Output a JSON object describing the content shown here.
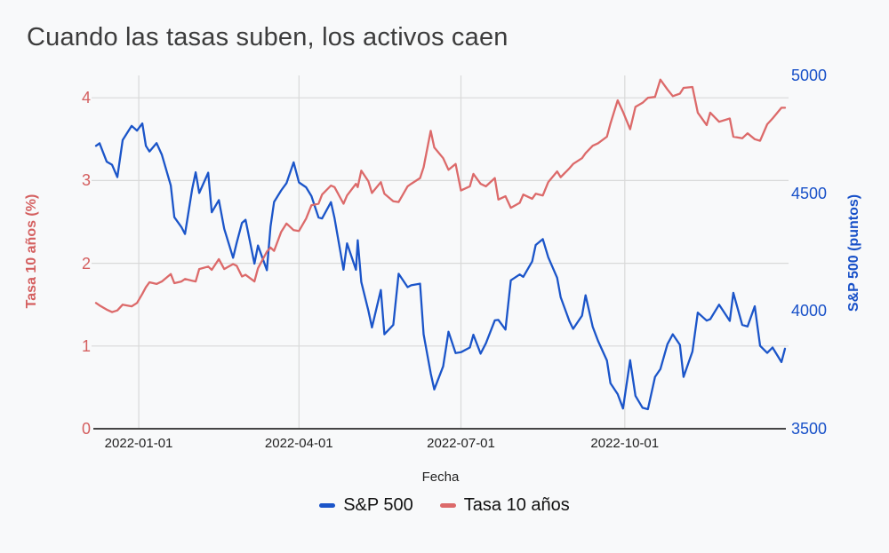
{
  "title": "Cuando las tasas suben, los activos caen",
  "colors": {
    "background": "#f8f9fa",
    "title_text": "#3c3c3c",
    "tick_text": "#1f1f1f",
    "blue": "#1b55c9",
    "blue_text": "#1750c8",
    "red": "#dc6a6a",
    "red_text": "#d45f5f",
    "grid": "#d9d9d9",
    "axis_line": "#454545"
  },
  "chart_data": {
    "type": "line",
    "title": "Cuando las tasas suben, los activos caen",
    "xlabel": "Fecha",
    "grid": true,
    "legend_position": "bottom",
    "x_tick_labels": [
      "2022-01-01",
      "2022-04-01",
      "2022-07-01",
      "2022-10-01"
    ],
    "x_range": [
      "2021-12-08",
      "2022-12-30"
    ],
    "left_axis": {
      "label": "Tasa 10 años (%)",
      "color": "#d45f5f",
      "ticks": [
        0,
        1,
        2,
        3,
        4
      ],
      "range": [
        0,
        4.27
      ]
    },
    "right_axis": {
      "label": "S&P 500 (puntos)",
      "color": "#1750c8",
      "ticks": [
        3500,
        4000,
        4500,
        5000
      ],
      "range": [
        3500,
        5000
      ]
    },
    "dates": [
      "2021-12-08",
      "2021-12-10",
      "2021-12-14",
      "2021-12-17",
      "2021-12-20",
      "2021-12-23",
      "2021-12-28",
      "2021-12-31",
      "2022-01-03",
      "2022-01-05",
      "2022-01-07",
      "2022-01-11",
      "2022-01-14",
      "2022-01-19",
      "2022-01-21",
      "2022-01-25",
      "2022-01-27",
      "2022-01-31",
      "2022-02-02",
      "2022-02-04",
      "2022-02-09",
      "2022-02-11",
      "2022-02-15",
      "2022-02-18",
      "2022-02-23",
      "2022-02-25",
      "2022-02-28",
      "2022-03-02",
      "2022-03-07",
      "2022-03-09",
      "2022-03-14",
      "2022-03-16",
      "2022-03-18",
      "2022-03-22",
      "2022-03-25",
      "2022-03-29",
      "2022-04-01",
      "2022-04-05",
      "2022-04-08",
      "2022-04-12",
      "2022-04-14",
      "2022-04-19",
      "2022-04-21",
      "2022-04-26",
      "2022-04-28",
      "2022-05-03",
      "2022-05-04",
      "2022-05-06",
      "2022-05-10",
      "2022-05-12",
      "2022-05-17",
      "2022-05-19",
      "2022-05-24",
      "2022-05-27",
      "2022-06-01",
      "2022-06-03",
      "2022-06-08",
      "2022-06-10",
      "2022-06-14",
      "2022-06-16",
      "2022-06-21",
      "2022-06-24",
      "2022-06-28",
      "2022-07-01",
      "2022-07-06",
      "2022-07-08",
      "2022-07-12",
      "2022-07-15",
      "2022-07-20",
      "2022-07-22",
      "2022-07-26",
      "2022-07-29",
      "2022-08-03",
      "2022-08-05",
      "2022-08-10",
      "2022-08-12",
      "2022-08-16",
      "2022-08-19",
      "2022-08-24",
      "2022-08-26",
      "2022-08-31",
      "2022-09-02",
      "2022-09-07",
      "2022-09-09",
      "2022-09-13",
      "2022-09-16",
      "2022-09-21",
      "2022-09-23",
      "2022-09-27",
      "2022-09-30",
      "2022-10-04",
      "2022-10-07",
      "2022-10-11",
      "2022-10-14",
      "2022-10-18",
      "2022-10-21",
      "2022-10-25",
      "2022-10-28",
      "2022-11-01",
      "2022-11-03",
      "2022-11-08",
      "2022-11-11",
      "2022-11-16",
      "2022-11-18",
      "2022-11-23",
      "2022-11-29",
      "2022-12-01",
      "2022-12-06",
      "2022-12-09",
      "2022-12-13",
      "2022-12-16",
      "2022-12-20",
      "2022-12-23",
      "2022-12-28",
      "2022-12-30"
    ],
    "series": [
      {
        "name": "S&P 500",
        "axis": "right",
        "color": "#1b55c9",
        "values": [
          4701,
          4712,
          4634,
          4621,
          4568,
          4726,
          4786,
          4766,
          4796,
          4701,
          4677,
          4713,
          4663,
          4533,
          4398,
          4356,
          4327,
          4516,
          4589,
          4501,
          4587,
          4419,
          4471,
          4349,
          4226,
          4289,
          4374,
          4387,
          4201,
          4278,
          4173,
          4358,
          4463,
          4512,
          4543,
          4631,
          4546,
          4525,
          4488,
          4397,
          4393,
          4462,
          4394,
          4175,
          4287,
          4175,
          4300,
          4123,
          4001,
          3930,
          4089,
          3901,
          3941,
          4158,
          4101,
          4109,
          4116,
          3901,
          3735,
          3667,
          3765,
          3912,
          3821,
          3825,
          3845,
          3899,
          3819,
          3863,
          3960,
          3962,
          3921,
          4130,
          4155,
          4145,
          4210,
          4280,
          4305,
          4228,
          4141,
          4058,
          3955,
          3924,
          3980,
          4067,
          3933,
          3873,
          3790,
          3693,
          3647,
          3586,
          3791,
          3640,
          3589,
          3583,
          3720,
          3753,
          3859,
          3901,
          3856,
          3720,
          3828,
          3993,
          3959,
          3965,
          4027,
          3958,
          4077,
          3941,
          3934,
          4020,
          3852,
          3822,
          3845,
          3783,
          3840
        ]
      },
      {
        "name": "Tasa 10 años",
        "axis": "left",
        "color": "#dc6a6a",
        "values": [
          1.52,
          1.49,
          1.44,
          1.41,
          1.43,
          1.5,
          1.48,
          1.52,
          1.63,
          1.71,
          1.77,
          1.75,
          1.78,
          1.87,
          1.76,
          1.78,
          1.81,
          1.79,
          1.78,
          1.93,
          1.96,
          1.92,
          2.05,
          1.93,
          1.99,
          1.97,
          1.84,
          1.86,
          1.78,
          1.94,
          2.14,
          2.19,
          2.15,
          2.38,
          2.48,
          2.4,
          2.39,
          2.54,
          2.7,
          2.72,
          2.83,
          2.94,
          2.92,
          2.72,
          2.82,
          2.96,
          2.92,
          3.12,
          2.99,
          2.85,
          2.98,
          2.84,
          2.75,
          2.74,
          2.93,
          2.96,
          3.03,
          3.16,
          3.6,
          3.4,
          3.27,
          3.13,
          3.2,
          2.88,
          2.93,
          3.08,
          2.96,
          2.93,
          3.03,
          2.77,
          2.81,
          2.67,
          2.73,
          2.83,
          2.78,
          2.84,
          2.82,
          2.98,
          3.11,
          3.04,
          3.15,
          3.2,
          3.27,
          3.33,
          3.42,
          3.45,
          3.53,
          3.69,
          3.97,
          3.83,
          3.62,
          3.89,
          3.94,
          4.0,
          4.01,
          4.22,
          4.1,
          4.02,
          4.05,
          4.12,
          4.13,
          3.82,
          3.67,
          3.82,
          3.71,
          3.75,
          3.53,
          3.51,
          3.57,
          3.5,
          3.48,
          3.68,
          3.75,
          3.88,
          3.88
        ]
      }
    ]
  },
  "legend": {
    "items": [
      {
        "label": "S&P 500"
      },
      {
        "label": "Tasa 10 años"
      }
    ]
  }
}
